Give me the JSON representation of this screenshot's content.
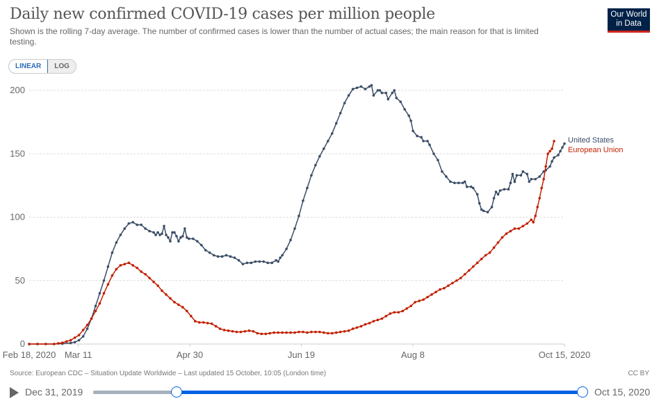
{
  "header": {
    "title": "Daily new confirmed COVID-19 cases per million people",
    "subtitle": "Shown is the rolling 7-day average. The number of confirmed cases is lower than the number of actual cases; the main reason for that is limited testing.",
    "logo_line1": "Our World",
    "logo_line2": "in Data"
  },
  "scale_toggle": {
    "options": [
      "LINEAR",
      "LOG"
    ],
    "selected": "LINEAR"
  },
  "colors": {
    "us": "#3b4d66",
    "eu": "#c21f00",
    "grid": "#dddddd",
    "accent": "#0062e3"
  },
  "chart_data": {
    "type": "line",
    "title": "Daily new confirmed COVID-19 cases per million people",
    "xlabel": "",
    "ylabel": "",
    "x_start": "Feb 18, 2020",
    "x_end": "Oct 15, 2020",
    "x_unit": "days since Feb 18, 2020",
    "xlim": [
      0,
      240
    ],
    "ylim": [
      0,
      200
    ],
    "yticks": [
      0,
      50,
      100,
      150,
      200
    ],
    "xticks": [
      {
        "day": 0,
        "label": "Feb 18, 2020"
      },
      {
        "day": 22,
        "label": "Mar 11"
      },
      {
        "day": 72,
        "label": "Apr 30"
      },
      {
        "day": 122,
        "label": "Jun 19"
      },
      {
        "day": 172,
        "label": "Aug 8"
      },
      {
        "day": 240,
        "label": "Oct 15, 2020"
      }
    ],
    "grid": true,
    "legend_placement": "right-end-labels",
    "series": [
      {
        "name": "United States",
        "points": [
          [
            0,
            0
          ],
          [
            4,
            0
          ],
          [
            8,
            0
          ],
          [
            12,
            0
          ],
          [
            16,
            0.3
          ],
          [
            20,
            0.8
          ],
          [
            22,
            1.5
          ],
          [
            24,
            3
          ],
          [
            26,
            6
          ],
          [
            28,
            12
          ],
          [
            30,
            20
          ],
          [
            32,
            30
          ],
          [
            34,
            40
          ],
          [
            36,
            50
          ],
          [
            38,
            61
          ],
          [
            40,
            72
          ],
          [
            42,
            80
          ],
          [
            44,
            86
          ],
          [
            46,
            91
          ],
          [
            48,
            95
          ],
          [
            50,
            96
          ],
          [
            52,
            94
          ],
          [
            54,
            94
          ],
          [
            56,
            91
          ],
          [
            58,
            89
          ],
          [
            60,
            88
          ],
          [
            61,
            86
          ],
          [
            62,
            88
          ],
          [
            63,
            86
          ],
          [
            64,
            87
          ],
          [
            65,
            93
          ],
          [
            66,
            86
          ],
          [
            67,
            84
          ],
          [
            68,
            81
          ],
          [
            69,
            88
          ],
          [
            70,
            88
          ],
          [
            71,
            85
          ],
          [
            72,
            81
          ],
          [
            73,
            84
          ],
          [
            74,
            85
          ],
          [
            75,
            91
          ],
          [
            76,
            84
          ],
          [
            77,
            83
          ],
          [
            79,
            83
          ],
          [
            81,
            81
          ],
          [
            83,
            78
          ],
          [
            85,
            74
          ],
          [
            87,
            72
          ],
          [
            89,
            70
          ],
          [
            91,
            69
          ],
          [
            93,
            69
          ],
          [
            95,
            70
          ],
          [
            97,
            69
          ],
          [
            99,
            68
          ],
          [
            101,
            66
          ],
          [
            103,
            63
          ],
          [
            105,
            64
          ],
          [
            107,
            64
          ],
          [
            109,
            65
          ],
          [
            111,
            65
          ],
          [
            113,
            65
          ],
          [
            115,
            64
          ],
          [
            117,
            64
          ],
          [
            119,
            66
          ],
          [
            120,
            65
          ],
          [
            121,
            68
          ],
          [
            122,
            70
          ],
          [
            124,
            75
          ],
          [
            126,
            82
          ],
          [
            128,
            91
          ],
          [
            130,
            101
          ],
          [
            132,
            113
          ],
          [
            134,
            123
          ],
          [
            136,
            133
          ],
          [
            138,
            141
          ],
          [
            140,
            148
          ],
          [
            142,
            154
          ],
          [
            144,
            160
          ],
          [
            146,
            166
          ],
          [
            148,
            174
          ],
          [
            150,
            182
          ],
          [
            152,
            190
          ],
          [
            154,
            196
          ],
          [
            156,
            201
          ],
          [
            158,
            202
          ],
          [
            160,
            203
          ],
          [
            162,
            201
          ],
          [
            164,
            203
          ],
          [
            165,
            204
          ],
          [
            166,
            196
          ],
          [
            168,
            200
          ],
          [
            169,
            200
          ],
          [
            170,
            198
          ],
          [
            172,
            198
          ],
          [
            173,
            193
          ],
          [
            175,
            198
          ],
          [
            176,
            200
          ],
          [
            177,
            194
          ],
          [
            179,
            191
          ],
          [
            181,
            185
          ],
          [
            183,
            180
          ],
          [
            184,
            176
          ],
          [
            185,
            168
          ],
          [
            187,
            164
          ],
          [
            189,
            163
          ],
          [
            190,
            160
          ],
          [
            192,
            160
          ],
          [
            193,
            157
          ],
          [
            195,
            150
          ],
          [
            197,
            145
          ],
          [
            199,
            136
          ],
          [
            201,
            132
          ],
          [
            203,
            128
          ],
          [
            205,
            127
          ],
          [
            207,
            127
          ],
          [
            209,
            127
          ],
          [
            210,
            128
          ],
          [
            211,
            124
          ],
          [
            213,
            124
          ],
          [
            214,
            123
          ],
          [
            216,
            118
          ],
          [
            217,
            111
          ],
          [
            218,
            106
          ],
          [
            219,
            105
          ],
          [
            221,
            104
          ],
          [
            223,
            108
          ],
          [
            224,
            115
          ],
          [
            225,
            120
          ],
          [
            226,
            118
          ],
          [
            227,
            121
          ],
          [
            229,
            122
          ],
          [
            231,
            122
          ],
          [
            232,
            127
          ],
          [
            233,
            134
          ],
          [
            234,
            128
          ],
          [
            235,
            133
          ],
          [
            237,
            133
          ],
          [
            238,
            136
          ],
          [
            240,
            134
          ],
          [
            241,
            128
          ],
          [
            242,
            130
          ],
          [
            244,
            130
          ],
          [
            246,
            132
          ],
          [
            248,
            136
          ],
          [
            249,
            137
          ],
          [
            251,
            140
          ],
          [
            252,
            144
          ],
          [
            253,
            147
          ],
          [
            255,
            149
          ],
          [
            256,
            152
          ],
          [
            257,
            155
          ],
          [
            258,
            158
          ]
        ]
      },
      {
        "name": "European Union",
        "points": [
          [
            0,
            0
          ],
          [
            4,
            0
          ],
          [
            8,
            0
          ],
          [
            12,
            0
          ],
          [
            14,
            0.5
          ],
          [
            16,
            1
          ],
          [
            18,
            2
          ],
          [
            20,
            3
          ],
          [
            22,
            5
          ],
          [
            24,
            7
          ],
          [
            26,
            11
          ],
          [
            28,
            15
          ],
          [
            30,
            20
          ],
          [
            32,
            26
          ],
          [
            34,
            32
          ],
          [
            36,
            40
          ],
          [
            38,
            47
          ],
          [
            40,
            54
          ],
          [
            42,
            59
          ],
          [
            44,
            62
          ],
          [
            46,
            63
          ],
          [
            48,
            64
          ],
          [
            50,
            62
          ],
          [
            52,
            60
          ],
          [
            54,
            57
          ],
          [
            56,
            55
          ],
          [
            58,
            52
          ],
          [
            60,
            49
          ],
          [
            62,
            46
          ],
          [
            64,
            42
          ],
          [
            66,
            39
          ],
          [
            68,
            36
          ],
          [
            70,
            33
          ],
          [
            72,
            31
          ],
          [
            74,
            29
          ],
          [
            76,
            26
          ],
          [
            78,
            22
          ],
          [
            80,
            18
          ],
          [
            82,
            17
          ],
          [
            84,
            17
          ],
          [
            86,
            16.5
          ],
          [
            88,
            16
          ],
          [
            90,
            14
          ],
          [
            92,
            12
          ],
          [
            94,
            11
          ],
          [
            96,
            10.5
          ],
          [
            98,
            10
          ],
          [
            100,
            9.5
          ],
          [
            102,
            9.5
          ],
          [
            104,
            10
          ],
          [
            106,
            10.5
          ],
          [
            108,
            10
          ],
          [
            110,
            8.5
          ],
          [
            112,
            8
          ],
          [
            114,
            8
          ],
          [
            116,
            8.5
          ],
          [
            118,
            9
          ],
          [
            120,
            9
          ],
          [
            122,
            9
          ],
          [
            124,
            9
          ],
          [
            126,
            9
          ],
          [
            128,
            9
          ],
          [
            130,
            9.5
          ],
          [
            132,
            9.5
          ],
          [
            134,
            9
          ],
          [
            136,
            9.5
          ],
          [
            138,
            9.5
          ],
          [
            140,
            9.5
          ],
          [
            142,
            9
          ],
          [
            144,
            8.5
          ],
          [
            146,
            8.5
          ],
          [
            148,
            9
          ],
          [
            150,
            9.5
          ],
          [
            152,
            10
          ],
          [
            154,
            10.5
          ],
          [
            156,
            12
          ],
          [
            158,
            13
          ],
          [
            160,
            14
          ],
          [
            162,
            15.5
          ],
          [
            164,
            16.5
          ],
          [
            166,
            18
          ],
          [
            168,
            19
          ],
          [
            170,
            20
          ],
          [
            172,
            22
          ],
          [
            174,
            24
          ],
          [
            176,
            25
          ],
          [
            178,
            25
          ],
          [
            180,
            26
          ],
          [
            182,
            28
          ],
          [
            184,
            30
          ],
          [
            186,
            33
          ],
          [
            188,
            34
          ],
          [
            190,
            35
          ],
          [
            192,
            37
          ],
          [
            194,
            39
          ],
          [
            196,
            41
          ],
          [
            198,
            43
          ],
          [
            200,
            44
          ],
          [
            202,
            46
          ],
          [
            204,
            48
          ],
          [
            206,
            50
          ],
          [
            208,
            52
          ],
          [
            210,
            55
          ],
          [
            212,
            58
          ],
          [
            214,
            61
          ],
          [
            216,
            64
          ],
          [
            218,
            67
          ],
          [
            220,
            70
          ],
          [
            222,
            72
          ],
          [
            224,
            76
          ],
          [
            226,
            80
          ],
          [
            228,
            84
          ],
          [
            230,
            87
          ],
          [
            232,
            89
          ],
          [
            234,
            91
          ],
          [
            236,
            91
          ],
          [
            238,
            93
          ],
          [
            240,
            95
          ],
          [
            242,
            98
          ],
          [
            243,
            96
          ],
          [
            244,
            101
          ],
          [
            245,
            108
          ],
          [
            246,
            115
          ],
          [
            247,
            123
          ],
          [
            248,
            130
          ],
          [
            249,
            140
          ],
          [
            250,
            150
          ],
          [
            251,
            152
          ],
          [
            252,
            154
          ],
          [
            253,
            160
          ]
        ]
      }
    ]
  },
  "footer": {
    "source": "Source: European CDC – Situation Update Worldwide – Last updated 15 October, 10:05 (London time)",
    "license": "CC BY"
  },
  "timeline": {
    "start_label": "Dec 31, 2019",
    "end_label": "Oct 15, 2020",
    "selected_start_fraction": 0.17,
    "selected_end_fraction": 1.0
  }
}
